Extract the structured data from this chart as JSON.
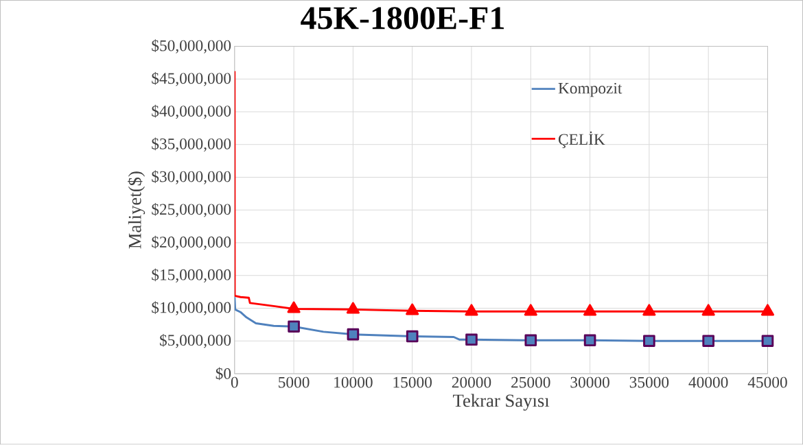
{
  "chart_data": {
    "type": "line",
    "title": "45K-1800E-F1",
    "xlabel": "Tekrar Sayısı",
    "ylabel": "Maliyet($)",
    "series": [
      {
        "name": "Kompozit",
        "color": "#4f81bd",
        "marker": "square",
        "x": [
          0,
          50,
          500,
          1000,
          1800,
          3300,
          5000,
          7500,
          10000,
          15000,
          18500,
          19000,
          20000,
          25000,
          30000,
          35000,
          40000,
          45000
        ],
        "values": [
          11700000,
          9800000,
          9400000,
          8600000,
          7700000,
          7300000,
          7200000,
          6400000,
          6000000,
          5700000,
          5600000,
          5200000,
          5200000,
          5100000,
          5100000,
          5000000,
          5000000,
          5000000
        ]
      },
      {
        "name": "ÇELİK",
        "color": "#ff0000",
        "marker": "triangle",
        "x": [
          0,
          10,
          500,
          1200,
          1300,
          3400,
          5000,
          10000,
          15000,
          20000,
          25000,
          30000,
          35000,
          40000,
          45000
        ],
        "values": [
          46200000,
          11900000,
          11700000,
          11600000,
          10800000,
          10300000,
          9900000,
          9800000,
          9600000,
          9500000,
          9500000,
          9500000,
          9500000,
          9500000,
          9500000
        ]
      }
    ],
    "xlim": [
      0,
      45000
    ],
    "xticks": [
      0,
      5000,
      10000,
      15000,
      20000,
      25000,
      30000,
      35000,
      40000,
      45000
    ],
    "ylim": [
      0,
      50000000
    ],
    "yticks": [
      {
        "value": 0,
        "label": "$0"
      },
      {
        "value": 5000000,
        "label": "$5,000,000"
      },
      {
        "value": 10000000,
        "label": "$10,000,000"
      },
      {
        "value": 15000000,
        "label": "$15,000,000"
      },
      {
        "value": 20000000,
        "label": "$20,000,000"
      },
      {
        "value": 25000000,
        "label": "$25,000,000"
      },
      {
        "value": 30000000,
        "label": "$30,000,000"
      },
      {
        "value": 35000000,
        "label": "$35,000,000"
      },
      {
        "value": 40000000,
        "label": "$40,000,000"
      },
      {
        "value": 45000000,
        "label": "$45,000,000"
      },
      {
        "value": 50000000,
        "label": "$50,000,000"
      }
    ],
    "grid": true,
    "legend": "top right",
    "line_style": "solid"
  }
}
